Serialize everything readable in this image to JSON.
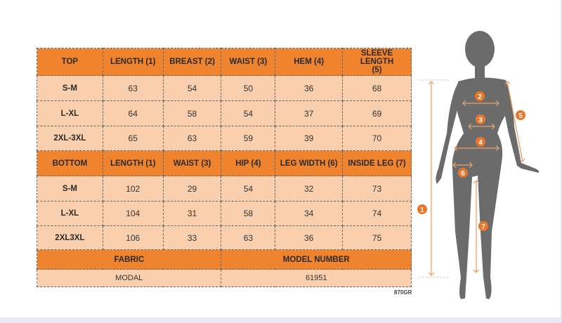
{
  "top": {
    "headers": [
      "TOP",
      "LENGTH (1)",
      "BREAST (2)",
      "WAIST (3)",
      "HEM (4)",
      "SLEEVE LENGTH (5)"
    ],
    "rows": [
      [
        "S-M",
        "63",
        "54",
        "50",
        "36",
        "68"
      ],
      [
        "L-XL",
        "64",
        "58",
        "54",
        "37",
        "69"
      ],
      [
        "2XL-3XL",
        "65",
        "63",
        "59",
        "39",
        "70"
      ]
    ]
  },
  "bottom": {
    "headers": [
      "BOTTOM",
      "LENGTH (1)",
      "WAIST (3)",
      "HIP (4)",
      "LEG WIDTH (6)",
      "INSIDE LEG (7)"
    ],
    "rows": [
      [
        "S-M",
        "102",
        "29",
        "54",
        "32",
        "73"
      ],
      [
        "L-XL",
        "104",
        "31",
        "58",
        "34",
        "74"
      ],
      [
        "2XL3XL",
        "106",
        "33",
        "63",
        "36",
        "75"
      ]
    ]
  },
  "info": {
    "fabric_label": "FABRIC",
    "model_label": "MODEL NUMBER",
    "fabric": "MODAL",
    "model": "61951"
  },
  "code": "870GR",
  "figure": {
    "markers": [
      "1",
      "2",
      "3",
      "4",
      "5",
      "6",
      "7"
    ]
  },
  "colors": {
    "header": "#f0832e",
    "cell": "#f9cfae",
    "silhouette": "#6b6b6b",
    "marker": "#e8772a"
  }
}
